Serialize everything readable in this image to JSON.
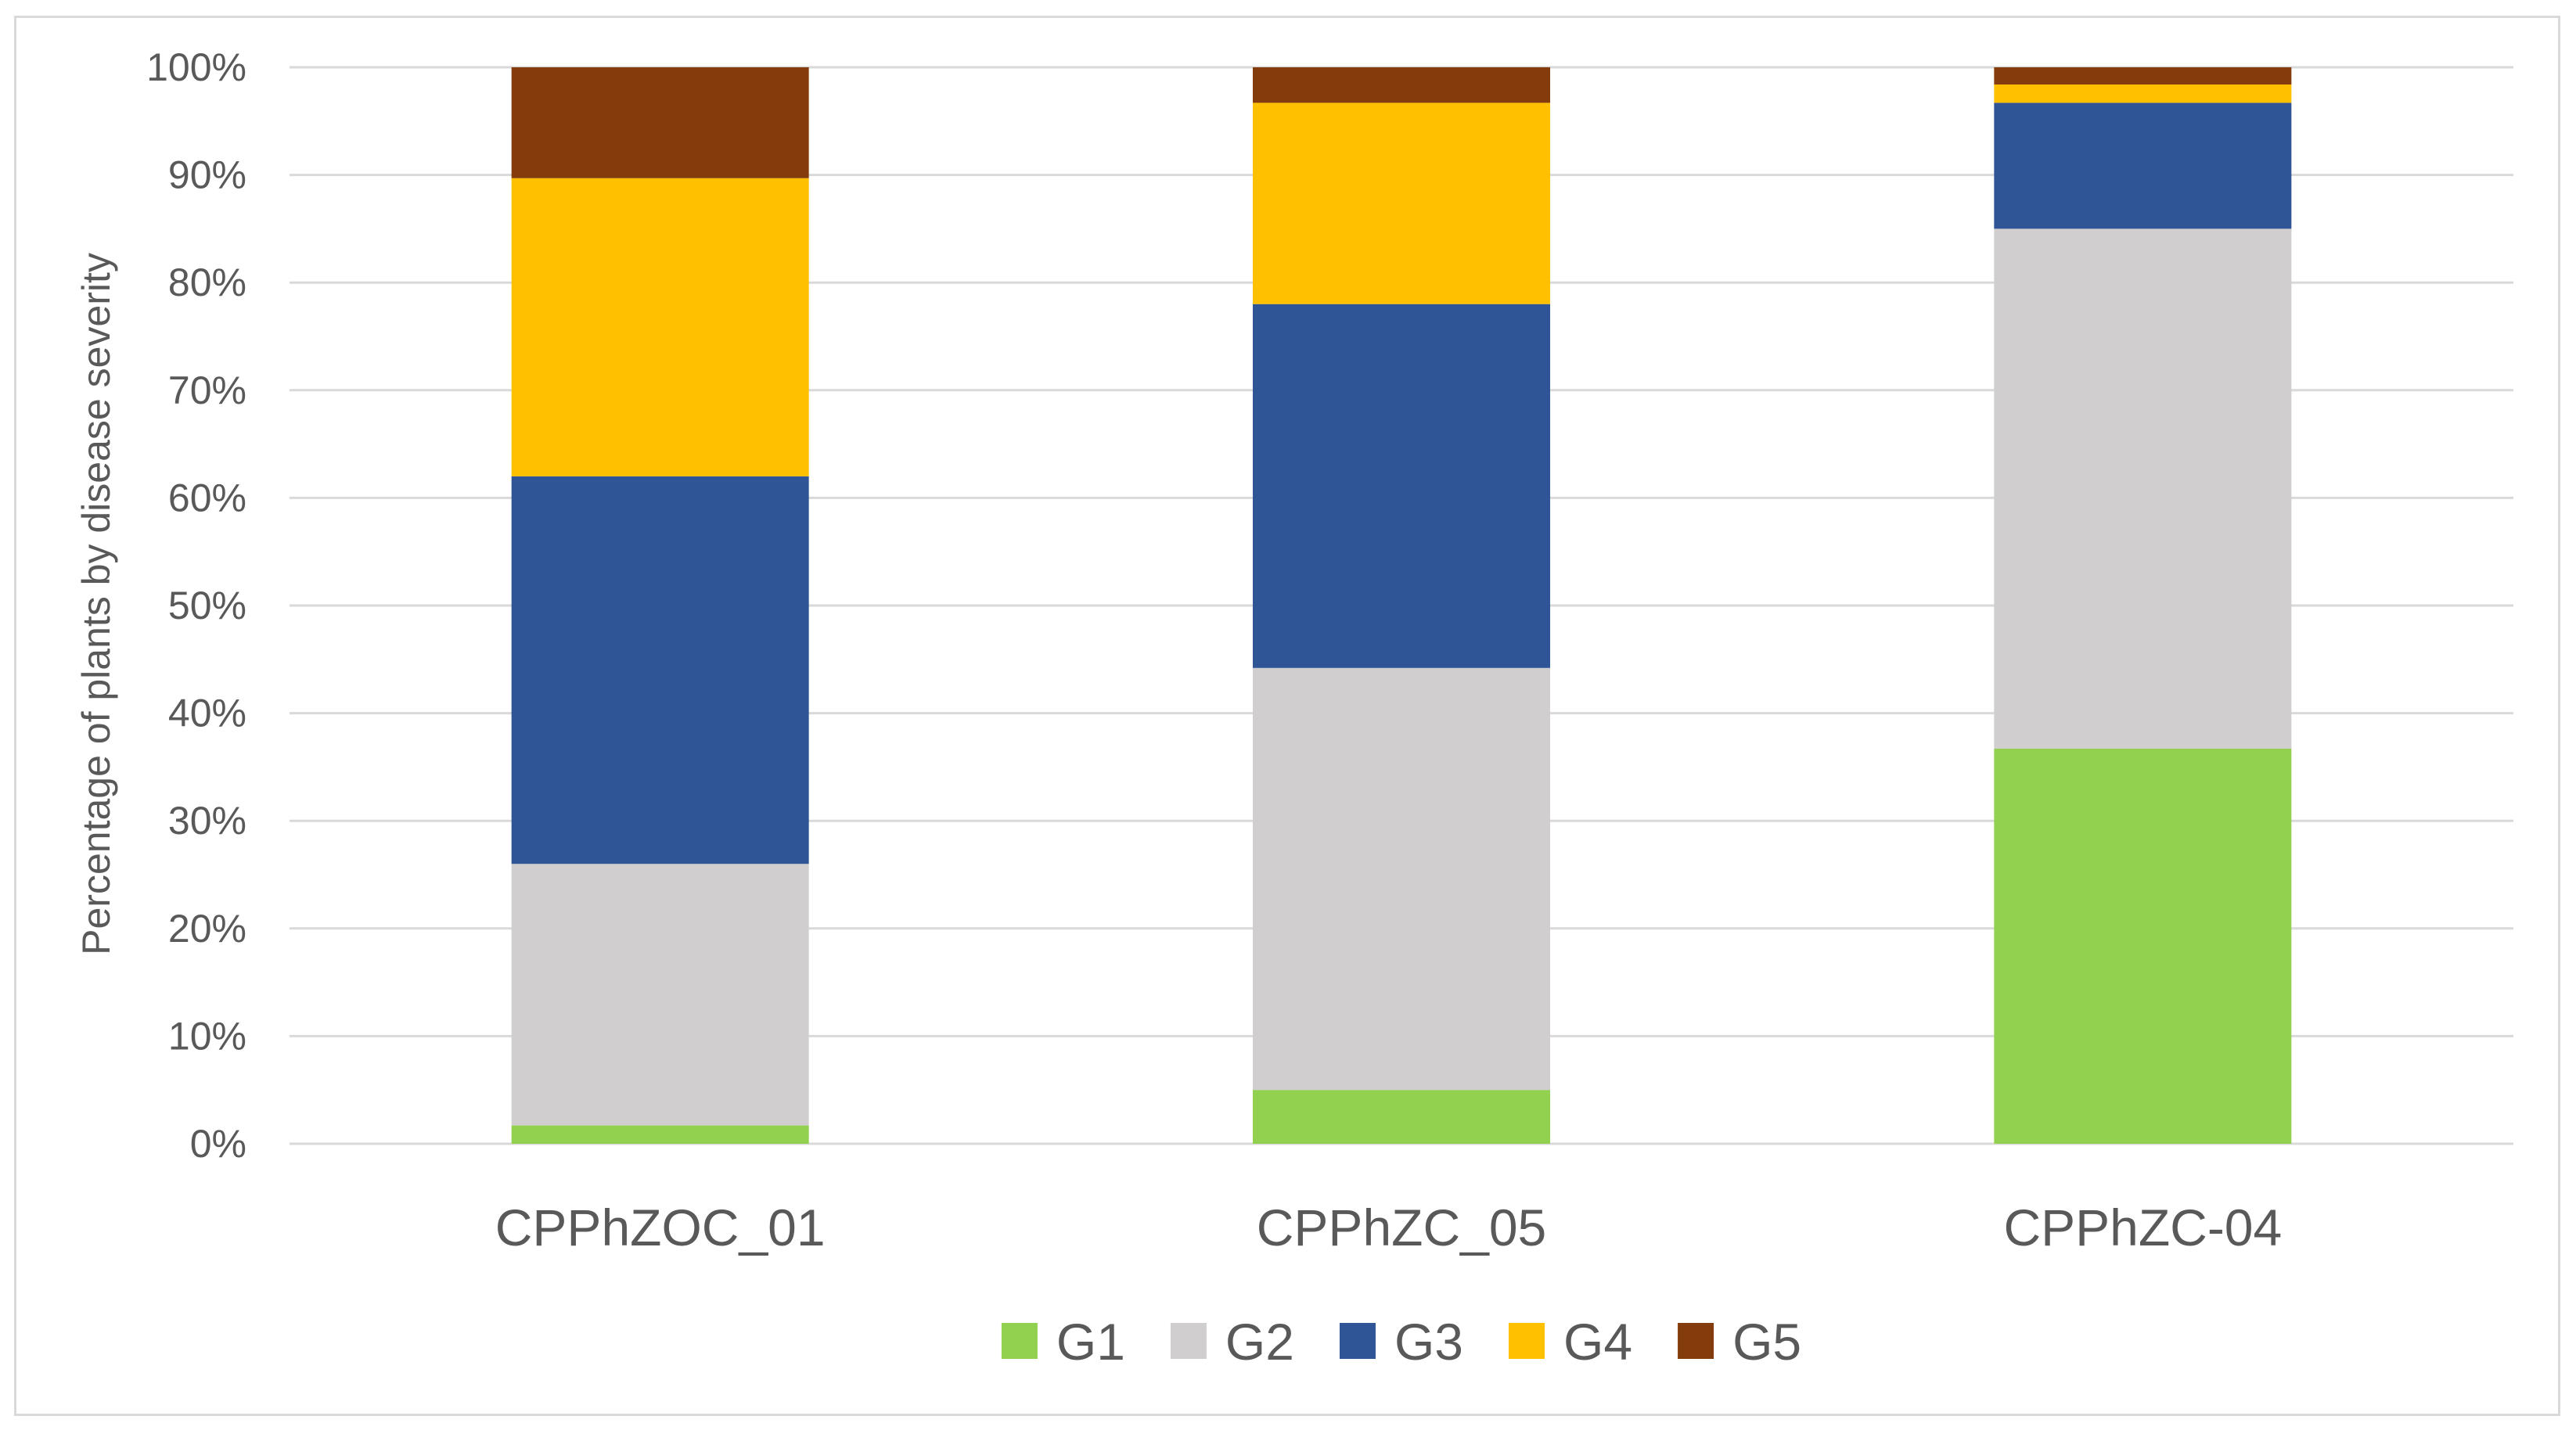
{
  "chart_data": {
    "type": "bar",
    "stacked": true,
    "percent": true,
    "title": "",
    "xlabel": "",
    "ylabel": "Percentage of plants by disease severity",
    "ylim": [
      0,
      100
    ],
    "yticks": [
      "0%",
      "10%",
      "20%",
      "30%",
      "40%",
      "50%",
      "60%",
      "70%",
      "80%",
      "90%",
      "100%"
    ],
    "grid": true,
    "legend": "bottom",
    "categories": [
      "CPPhZOC_01",
      "CPPhZC_05",
      "CPPhZC-04"
    ],
    "series": [
      {
        "name": "G1",
        "color": "#92D050",
        "values": [
          1.7,
          5.0,
          36.7
        ]
      },
      {
        "name": "G2",
        "color": "#D0CECE",
        "values": [
          24.3,
          39.2,
          48.3
        ]
      },
      {
        "name": "G3",
        "color": "#2F5597",
        "values": [
          36.0,
          33.8,
          11.7
        ]
      },
      {
        "name": "G4",
        "color": "#FFC000",
        "values": [
          27.7,
          18.7,
          1.7
        ]
      },
      {
        "name": "G5",
        "color": "#843C0C",
        "values": [
          10.3,
          3.3,
          1.6
        ]
      }
    ]
  }
}
